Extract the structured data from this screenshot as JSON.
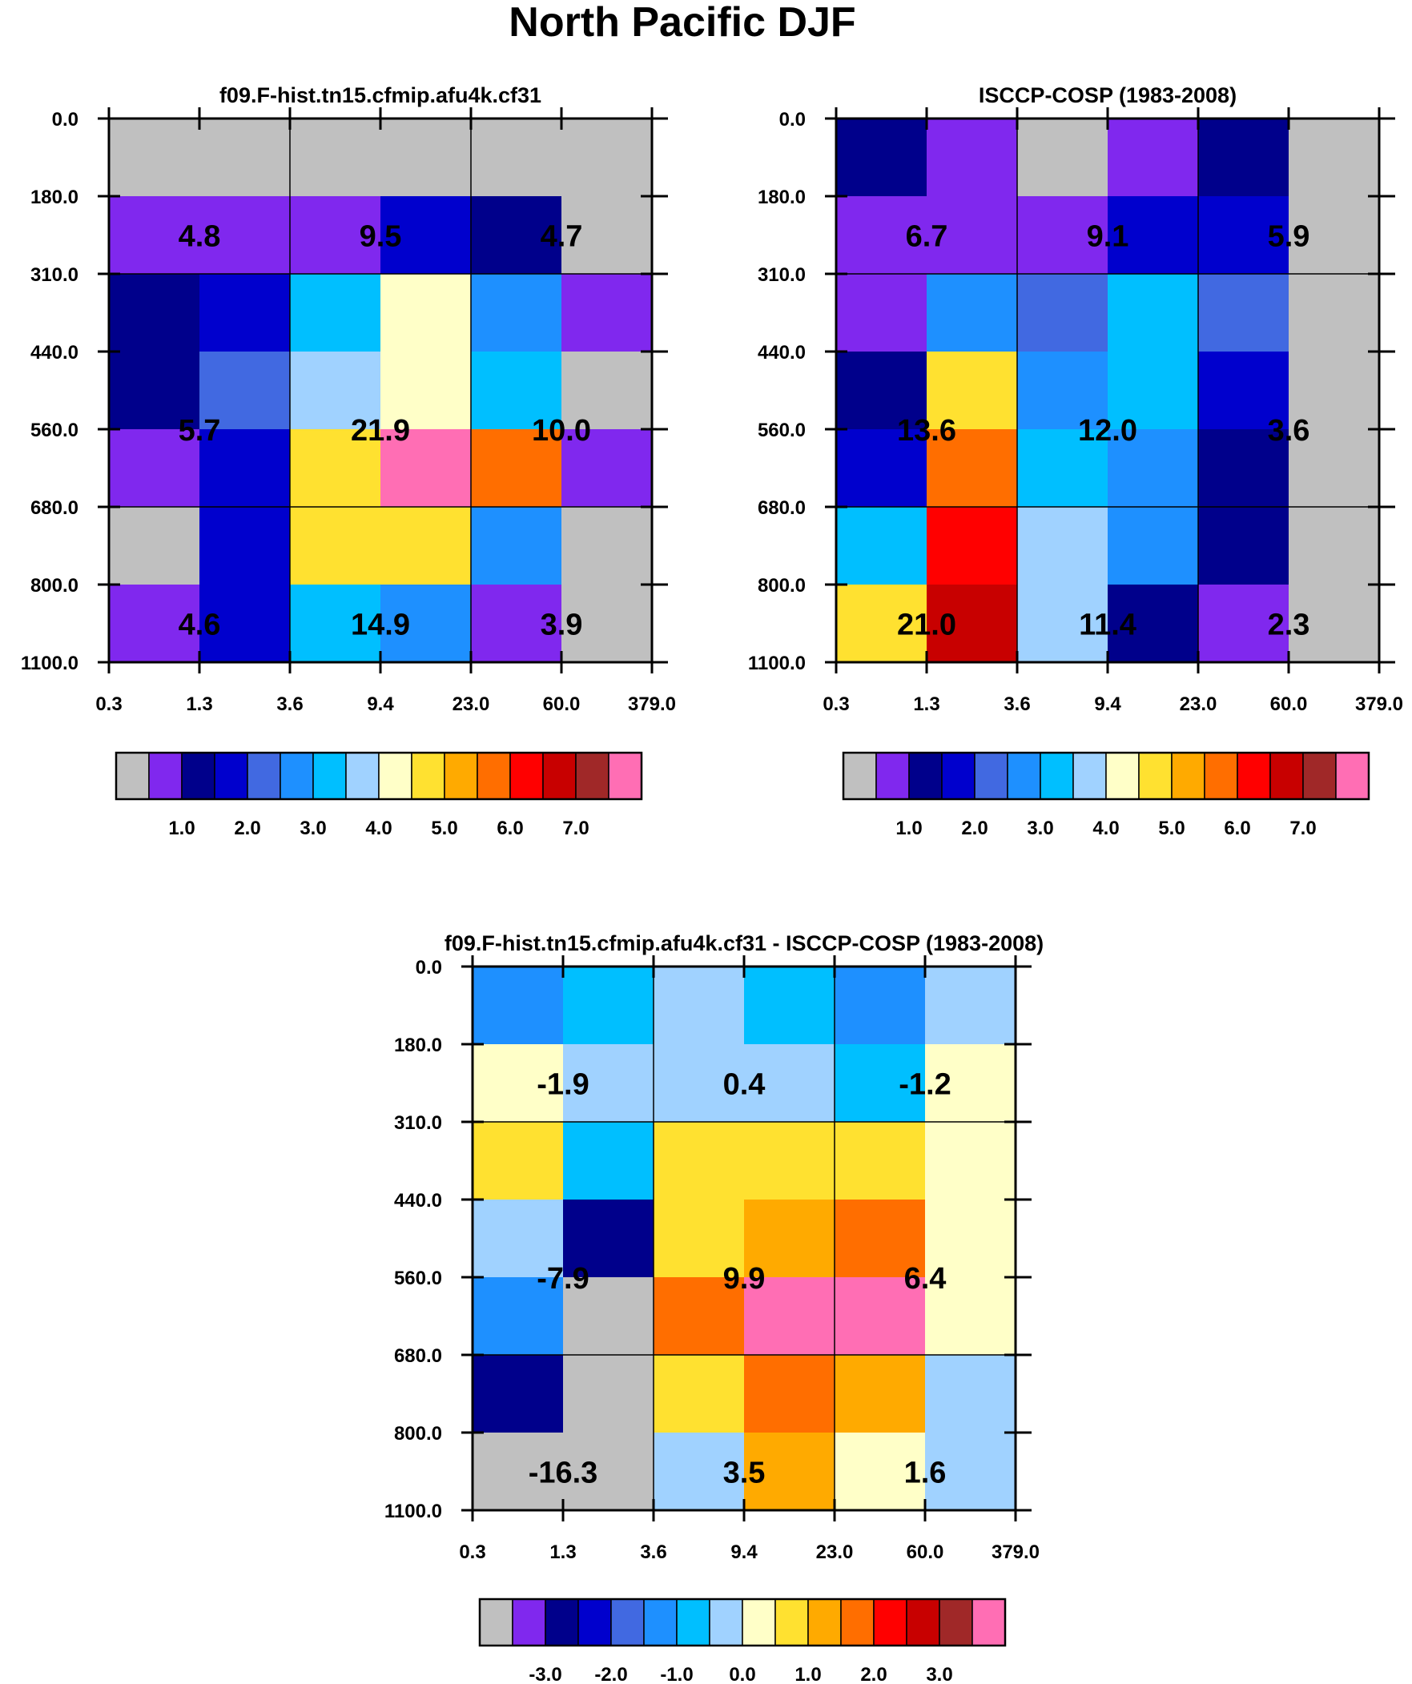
{
  "page_title": "North Pacific DJF",
  "palette": [
    "#c0c0c0",
    "#8028ee",
    "#00008b",
    "#0000cd",
    "#4169e1",
    "#1e90ff",
    "#00bfff",
    "#a0d2ff",
    "#ffffc8",
    "#ffe130",
    "#ffaa00",
    "#ff6e00",
    "#ff0000",
    "#c80000",
    "#a02828",
    "#ff6eb4"
  ],
  "chart_data": [
    {
      "type": "heatmap",
      "title": "f09.F-hist.tn15.cfmip.afu4k.cf31",
      "x_ticks": [
        "0.3",
        "1.3",
        "3.6",
        "9.4",
        "23.0",
        "60.0",
        "379.0"
      ],
      "y_ticks": [
        "0.0",
        "180.0",
        "310.0",
        "440.0",
        "560.0",
        "680.0",
        "800.0",
        "1100.0"
      ],
      "cell_colors": [
        [
          0,
          0,
          0,
          0,
          0,
          0
        ],
        [
          1,
          1,
          1,
          3,
          2,
          0
        ],
        [
          2,
          3,
          6,
          8,
          5,
          1
        ],
        [
          2,
          4,
          7,
          8,
          6,
          0
        ],
        [
          1,
          3,
          9,
          15,
          11,
          1
        ],
        [
          0,
          3,
          9,
          9,
          5,
          0
        ],
        [
          1,
          3,
          6,
          5,
          1,
          0
        ]
      ],
      "labels": [
        {
          "row": 0,
          "col": 0,
          "text": "4.8"
        },
        {
          "row": 0,
          "col": 1,
          "text": "9.5"
        },
        {
          "row": 0,
          "col": 2,
          "text": "4.7"
        },
        {
          "row": 1,
          "col": 0,
          "text": "5.7"
        },
        {
          "row": 1,
          "col": 1,
          "text": "21.9"
        },
        {
          "row": 1,
          "col": 2,
          "text": "10.0"
        },
        {
          "row": 2,
          "col": 0,
          "text": "4.6"
        },
        {
          "row": 2,
          "col": 1,
          "text": "14.9"
        },
        {
          "row": 2,
          "col": 2,
          "text": "3.9"
        }
      ],
      "colorbar": {
        "labels": [
          "1.0",
          "2.0",
          "3.0",
          "4.0",
          "5.0",
          "6.0",
          "7.0"
        ]
      }
    },
    {
      "type": "heatmap",
      "title": "ISCCP-COSP (1983-2008)",
      "x_ticks": [
        "0.3",
        "1.3",
        "3.6",
        "9.4",
        "23.0",
        "60.0",
        "379.0"
      ],
      "y_ticks": [
        "0.0",
        "180.0",
        "310.0",
        "440.0",
        "560.0",
        "680.0",
        "800.0",
        "1100.0"
      ],
      "cell_colors": [
        [
          2,
          1,
          0,
          1,
          2,
          0
        ],
        [
          1,
          1,
          1,
          3,
          3,
          0
        ],
        [
          1,
          5,
          4,
          6,
          4,
          0
        ],
        [
          2,
          9,
          5,
          6,
          3,
          0
        ],
        [
          3,
          11,
          6,
          5,
          2,
          0
        ],
        [
          6,
          12,
          7,
          5,
          2,
          0
        ],
        [
          9,
          13,
          7,
          2,
          1,
          0
        ]
      ],
      "labels": [
        {
          "row": 0,
          "col": 0,
          "text": "6.7"
        },
        {
          "row": 0,
          "col": 1,
          "text": "9.1"
        },
        {
          "row": 0,
          "col": 2,
          "text": "5.9"
        },
        {
          "row": 1,
          "col": 0,
          "text": "13.6"
        },
        {
          "row": 1,
          "col": 1,
          "text": "12.0"
        },
        {
          "row": 1,
          "col": 2,
          "text": "3.6"
        },
        {
          "row": 2,
          "col": 0,
          "text": "21.0"
        },
        {
          "row": 2,
          "col": 1,
          "text": "11.4"
        },
        {
          "row": 2,
          "col": 2,
          "text": "2.3"
        }
      ],
      "colorbar": {
        "labels": [
          "1.0",
          "2.0",
          "3.0",
          "4.0",
          "5.0",
          "6.0",
          "7.0"
        ]
      }
    },
    {
      "type": "heatmap",
      "title": "f09.F-hist.tn15.cfmip.afu4k.cf31 - ISCCP-COSP (1983-2008)",
      "x_ticks": [
        "0.3",
        "1.3",
        "3.6",
        "9.4",
        "23.0",
        "60.0",
        "379.0"
      ],
      "y_ticks": [
        "0.0",
        "180.0",
        "310.0",
        "440.0",
        "560.0",
        "680.0",
        "800.0",
        "1100.0"
      ],
      "cell_colors": [
        [
          5,
          6,
          7,
          6,
          5,
          7
        ],
        [
          8,
          7,
          7,
          7,
          6,
          8
        ],
        [
          9,
          6,
          9,
          9,
          9,
          8
        ],
        [
          7,
          2,
          9,
          10,
          11,
          8
        ],
        [
          5,
          0,
          11,
          15,
          15,
          8
        ],
        [
          2,
          0,
          9,
          11,
          10,
          7
        ],
        [
          0,
          0,
          7,
          10,
          8,
          7
        ]
      ],
      "labels": [
        {
          "row": 0,
          "col": 0,
          "text": "-1.9"
        },
        {
          "row": 0,
          "col": 1,
          "text": "0.4"
        },
        {
          "row": 0,
          "col": 2,
          "text": "-1.2"
        },
        {
          "row": 1,
          "col": 0,
          "text": "-7.9"
        },
        {
          "row": 1,
          "col": 1,
          "text": "9.9"
        },
        {
          "row": 1,
          "col": 2,
          "text": "6.4"
        },
        {
          "row": 2,
          "col": 0,
          "text": "-16.3"
        },
        {
          "row": 2,
          "col": 1,
          "text": "3.5"
        },
        {
          "row": 2,
          "col": 2,
          "text": "1.6"
        }
      ],
      "colorbar": {
        "labels": [
          "-3.0",
          "-2.0",
          "-1.0",
          "0.0",
          "1.0",
          "2.0",
          "3.0"
        ]
      }
    }
  ]
}
